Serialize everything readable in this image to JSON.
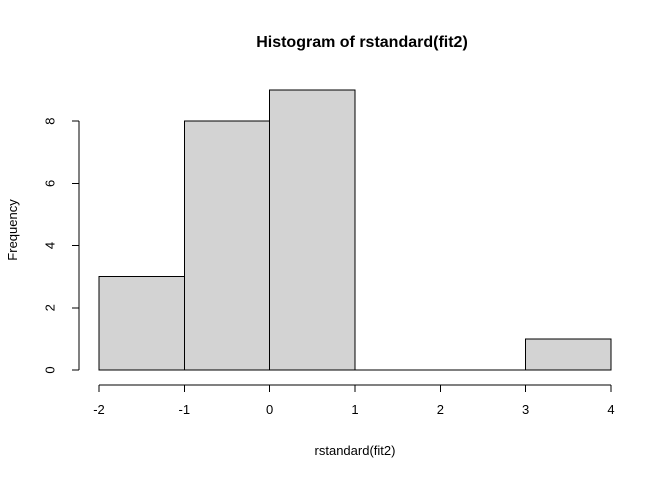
{
  "chart_data": {
    "type": "bar",
    "title": "Histogram of rstandard(fit2)",
    "xlabel": "rstandard(fit2)",
    "ylabel": "Frequency",
    "bins": [
      {
        "start": -2,
        "end": -1,
        "count": 3
      },
      {
        "start": -1,
        "end": 0,
        "count": 8
      },
      {
        "start": 0,
        "end": 1,
        "count": 9
      },
      {
        "start": 1,
        "end": 2,
        "count": 0
      },
      {
        "start": 2,
        "end": 3,
        "count": 0
      },
      {
        "start": 3,
        "end": 4,
        "count": 1
      }
    ],
    "xlim": [
      -2,
      4
    ],
    "ylim": [
      0,
      9
    ],
    "xticks": [
      "-2",
      "-1",
      "0",
      "1",
      "2",
      "3",
      "4"
    ],
    "yticks": [
      "0",
      "2",
      "4",
      "6",
      "8"
    ],
    "bar_fill": "#d3d3d3",
    "bar_stroke": "#000000",
    "grid": false,
    "legend": "none"
  }
}
